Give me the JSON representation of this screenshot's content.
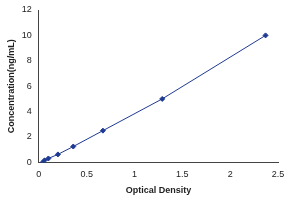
{
  "chart_data": {
    "type": "scatter",
    "x_label": "Optical Density",
    "y_label": "Concentration(ng/mL)",
    "x": [
      0.04,
      0.06,
      0.1,
      0.2,
      0.36,
      0.67,
      1.29,
      2.37
    ],
    "values": [
      0,
      0.16,
      0.31,
      0.63,
      1.25,
      2.5,
      5,
      10
    ],
    "color": "#1f3a93",
    "marker": "diamond",
    "line_style": "solid",
    "xlim": [
      0,
      2.5
    ],
    "xticks": [
      0,
      0.5,
      1,
      1.5,
      2,
      2.5
    ],
    "ylim": [
      0,
      12
    ],
    "yticks": [
      0,
      2,
      4,
      6,
      8,
      10,
      12
    ],
    "grid": false
  }
}
